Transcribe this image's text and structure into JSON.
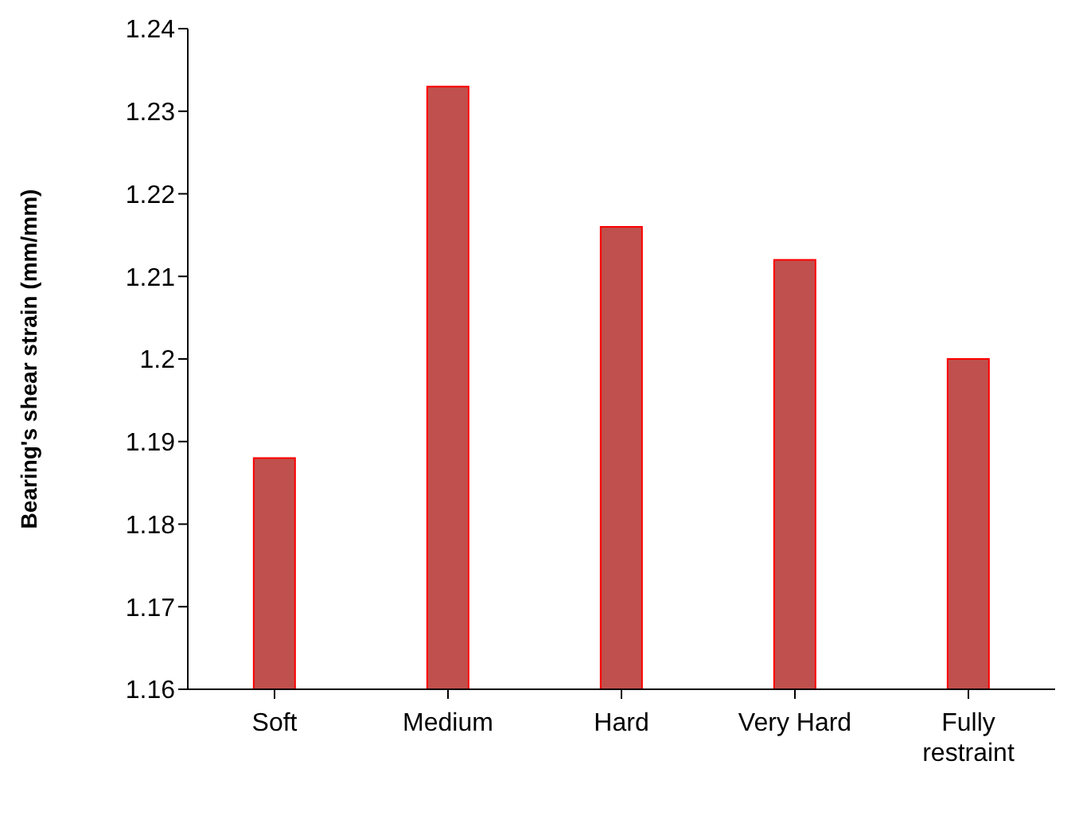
{
  "chart_data": {
    "type": "bar",
    "ylabel": "Bearing's shear strain (mm/mm)",
    "categories": [
      "Soft",
      "Medium",
      "Hard",
      "Very Hard",
      "Fully restraint"
    ],
    "values": [
      1.188,
      1.233,
      1.216,
      1.212,
      1.2
    ],
    "color": "#c0504d",
    "ylim": [
      1.16,
      1.24
    ],
    "yticks": [
      1.16,
      1.17,
      1.18,
      1.19,
      1.2,
      1.21,
      1.22,
      1.23,
      1.24
    ],
    "grid": false,
    "legend": false
  }
}
